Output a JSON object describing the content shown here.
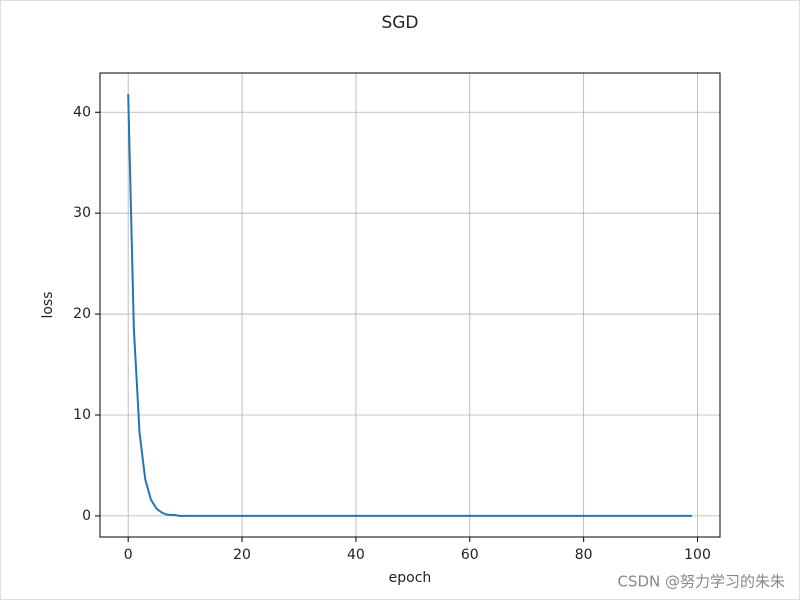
{
  "chart_data": {
    "type": "line",
    "title": "SGD",
    "xlabel": "epoch",
    "ylabel": "loss",
    "x": [
      0,
      1,
      2,
      3,
      4,
      5,
      6,
      7,
      8,
      9,
      10,
      11,
      12,
      13,
      14,
      15,
      16,
      17,
      18,
      19,
      20,
      21,
      22,
      23,
      24,
      25,
      26,
      27,
      28,
      29,
      30,
      31,
      32,
      33,
      34,
      35,
      36,
      37,
      38,
      39,
      40,
      41,
      42,
      43,
      44,
      45,
      46,
      47,
      48,
      49,
      50,
      51,
      52,
      53,
      54,
      55,
      56,
      57,
      58,
      59,
      60,
      61,
      62,
      63,
      64,
      65,
      66,
      67,
      68,
      69,
      70,
      71,
      72,
      73,
      74,
      75,
      76,
      77,
      78,
      79,
      80,
      81,
      82,
      83,
      84,
      85,
      86,
      87,
      88,
      89,
      90,
      91,
      92,
      93,
      94,
      95,
      96,
      97,
      98,
      99
    ],
    "series": [
      {
        "name": "loss",
        "color": "#1f77b4",
        "values": [
          41.8,
          18.5,
          8.2,
          3.6,
          1.6,
          0.7,
          0.3,
          0.1,
          0.1,
          0,
          0,
          0,
          0,
          0,
          0,
          0,
          0,
          0,
          0,
          0,
          0,
          0,
          0,
          0,
          0,
          0,
          0,
          0,
          0,
          0,
          0,
          0,
          0,
          0,
          0,
          0,
          0,
          0,
          0,
          0,
          0,
          0,
          0,
          0,
          0,
          0,
          0,
          0,
          0,
          0,
          0,
          0,
          0,
          0,
          0,
          0,
          0,
          0,
          0,
          0,
          0,
          0,
          0,
          0,
          0,
          0,
          0,
          0,
          0,
          0,
          0,
          0,
          0,
          0,
          0,
          0,
          0,
          0,
          0,
          0,
          0,
          0,
          0,
          0,
          0,
          0,
          0,
          0,
          0,
          0,
          0,
          0,
          0,
          0,
          0,
          0,
          0,
          0,
          0,
          0
        ]
      }
    ],
    "xlim": [
      -4.95,
      103.95
    ],
    "xticks": [
      0,
      20,
      40,
      60,
      80,
      100
    ],
    "ylim": [
      -2.09,
      43.89
    ],
    "yticks": [
      0,
      10,
      20,
      30,
      40
    ],
    "grid": true,
    "watermark": "CSDN @努力学习的朱朱"
  }
}
